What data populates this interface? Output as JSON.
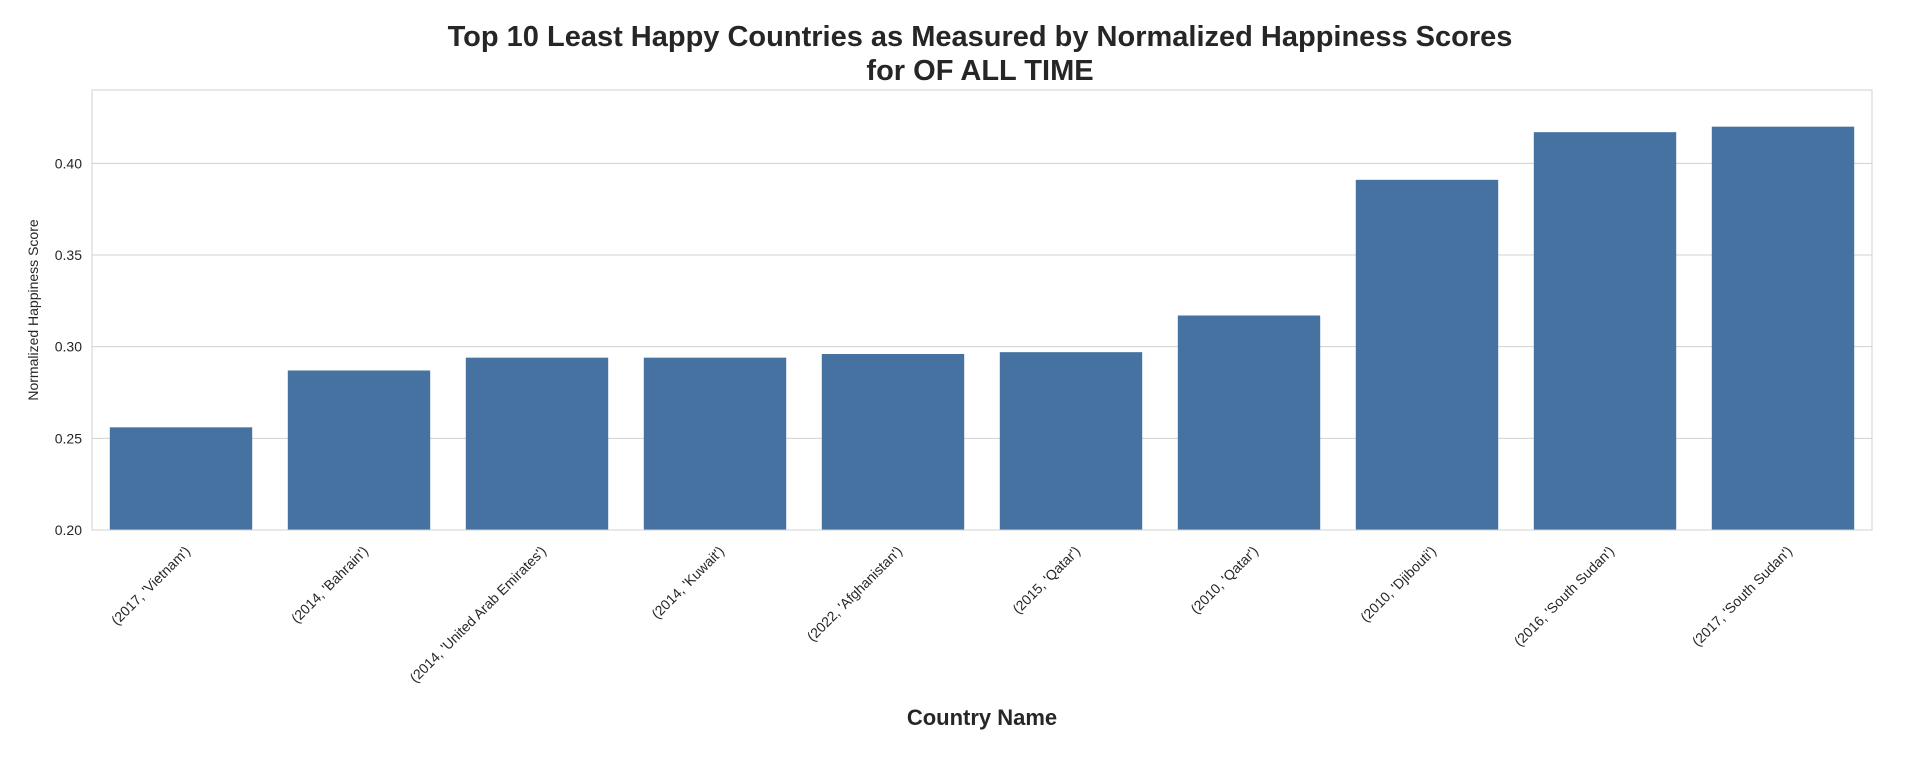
{
  "chart_data": {
    "type": "bar",
    "title": "Top 10 Least Happy Countries as Measured by Normalized Happiness Scores",
    "subtitle": "for OF ALL TIME",
    "xlabel": "Country Name",
    "ylabel": "Normalized Happiness Score",
    "ylim": [
      0.2,
      0.44
    ],
    "yticks": [
      "0.20",
      "0.25",
      "0.30",
      "0.35",
      "0.40"
    ],
    "grid": true,
    "bar_color": "#4572a0",
    "categories": [
      "(2017, 'Vietnam')",
      "(2014, 'Bahrain')",
      "(2014, 'United Arab Emirates')",
      "(2014, 'Kuwait')",
      "(2022, 'Afghanistan')",
      "(2015, 'Qatar')",
      "(2010, 'Qatar')",
      "(2010, 'Djibouti')",
      "(2016, 'South Sudan')",
      "(2017, 'South Sudan')"
    ],
    "values": [
      0.256,
      0.287,
      0.294,
      0.294,
      0.296,
      0.297,
      0.317,
      0.391,
      0.417,
      0.42
    ]
  }
}
